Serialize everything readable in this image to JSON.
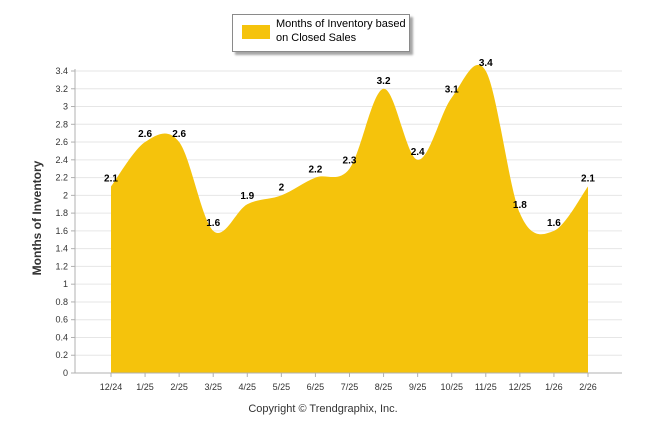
{
  "chart_data": {
    "type": "area",
    "categories": [
      "12/24",
      "1/25",
      "2/25",
      "3/25",
      "4/25",
      "5/25",
      "6/25",
      "7/25",
      "8/25",
      "9/25",
      "10/25",
      "11/25",
      "12/25",
      "1/26",
      "2/26"
    ],
    "series": [
      {
        "name": "Months of Inventory based on Closed Sales",
        "values": [
          2.1,
          2.6,
          2.6,
          1.6,
          1.9,
          2.0,
          2.2,
          2.3,
          3.2,
          2.4,
          3.1,
          3.4,
          1.8,
          1.6,
          2.1
        ],
        "data_labels": [
          "2.1",
          "2.6",
          "2.6",
          "1.6",
          "1.9",
          "2",
          "2.2",
          "2.3",
          "3.2",
          "2.4",
          "3.1",
          "3.4",
          "1.8",
          "1.6",
          "2.1"
        ]
      }
    ],
    "ylabel": "Months of Inventory",
    "xlabel": "",
    "ylim": [
      0,
      3.4
    ],
    "yticks": [
      "0",
      "0.2",
      "0.4",
      "0.6",
      "0.8",
      "1",
      "1.2",
      "1.4",
      "1.6",
      "1.8",
      "2",
      "2.2",
      "2.4",
      "2.6",
      "2.8",
      "3",
      "3.2",
      "3.4"
    ],
    "ytick_values": [
      0,
      0.2,
      0.4,
      0.6,
      0.8,
      1,
      1.2,
      1.4,
      1.6,
      1.8,
      2,
      2.2,
      2.4,
      2.6,
      2.8,
      3,
      3.2,
      3.4
    ],
    "grid": true,
    "legend_position": "top-center",
    "colors": {
      "fill": "#f5c30c",
      "grid": "#e6e6e6",
      "axis": "#b0b0b0"
    }
  },
  "legend": {
    "label": "Months of Inventory based on Closed Sales"
  },
  "footer": {
    "copyright": "Copyright © Trendgraphix, Inc."
  }
}
